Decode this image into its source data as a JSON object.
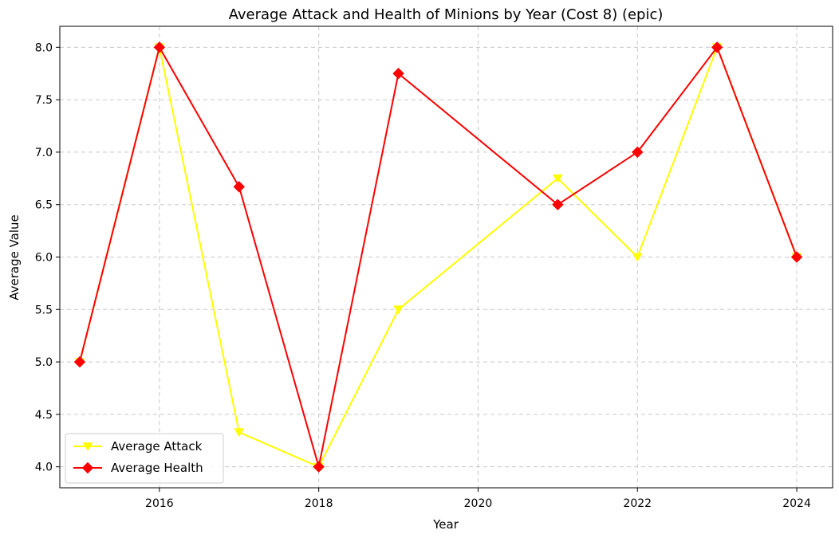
{
  "chart_data": {
    "type": "line",
    "title": "Average Attack and Health of Minions by Year (Cost 8) (epic)",
    "xlabel": "Year",
    "ylabel": "Average Value",
    "xlim": [
      2014.75,
      2024.45
    ],
    "ylim": [
      3.8,
      8.2
    ],
    "xticks": [
      2016,
      2018,
      2020,
      2022,
      2024
    ],
    "yticks": [
      4.0,
      4.5,
      5.0,
      5.5,
      6.0,
      6.5,
      7.0,
      7.5,
      8.0
    ],
    "grid": true,
    "legend_position": "lower-left",
    "series": [
      {
        "name": "Average Attack",
        "color": "#ffff00",
        "marker": "triangle-down",
        "x": [
          2015,
          2016,
          2017,
          2018,
          2019,
          2021,
          2022,
          2023,
          2024
        ],
        "y": [
          5.0,
          8.0,
          4.33,
          4.0,
          5.5,
          6.75,
          6.0,
          8.0,
          6.0
        ]
      },
      {
        "name": "Average Health",
        "color": "#ff0000",
        "marker": "diamond",
        "x": [
          2015,
          2016,
          2017,
          2018,
          2019,
          2021,
          2022,
          2023,
          2024
        ],
        "y": [
          5.0,
          8.0,
          6.67,
          4.0,
          7.75,
          6.5,
          7.0,
          8.0,
          6.0
        ]
      }
    ]
  }
}
